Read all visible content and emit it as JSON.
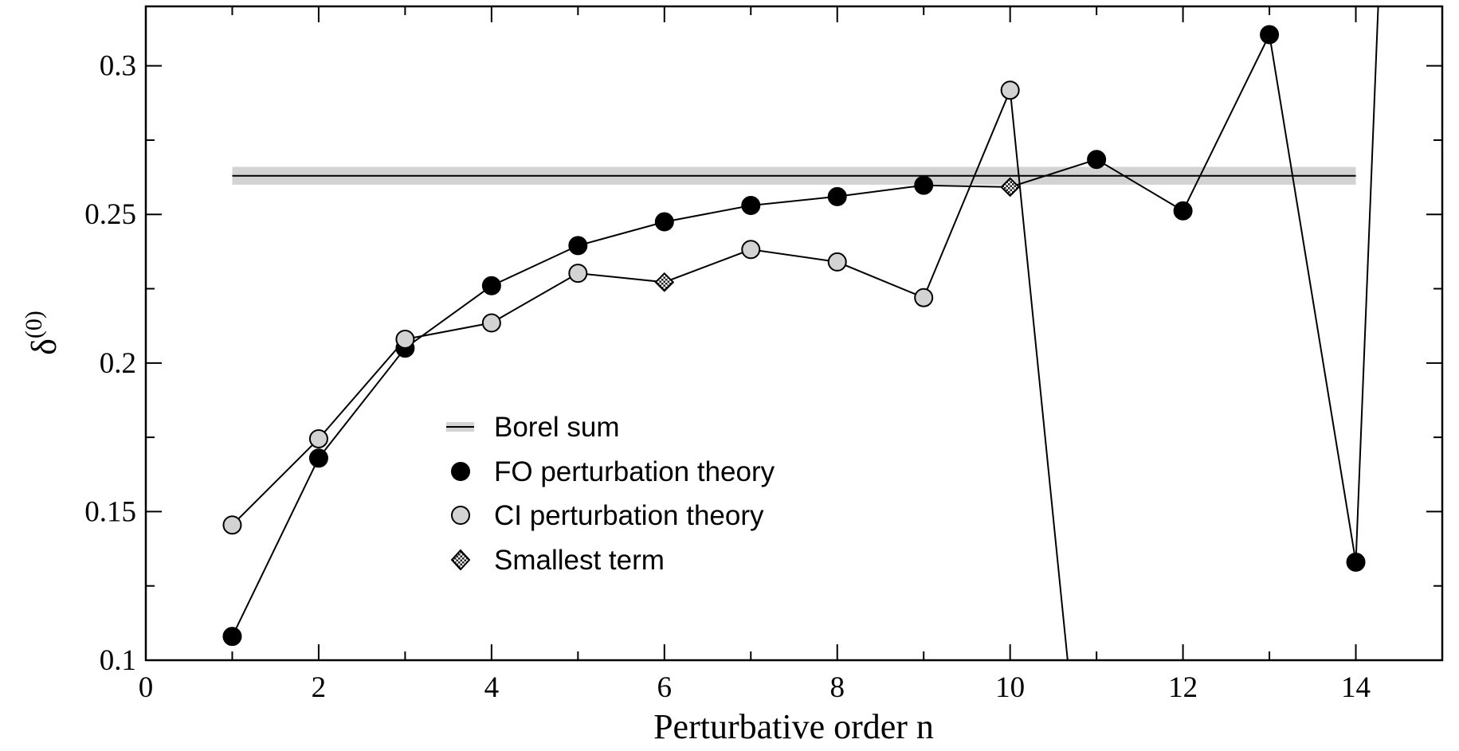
{
  "chart_data": {
    "type": "line",
    "xlabel": "Perturbative order n",
    "ylabel_base": "δ",
    "ylabel_sup": "(0)",
    "xlim": [
      0,
      15
    ],
    "ylim": [
      0.1,
      0.32
    ],
    "x_ticks": [
      0,
      2,
      4,
      6,
      8,
      10,
      12,
      14
    ],
    "x_tick_labels": [
      "0",
      "2",
      "4",
      "6",
      "8",
      "10",
      "12",
      "14"
    ],
    "y_ticks": [
      0.1,
      0.15,
      0.2,
      0.25,
      0.3
    ],
    "y_tick_labels": [
      "0.1",
      "0.15",
      "0.2",
      "0.25",
      "0.3"
    ],
    "grid": false,
    "legend_position": "center-left",
    "borel_sum": {
      "name": "Borel sum",
      "y": 0.263,
      "band": [
        0.26,
        0.266
      ],
      "x_range": [
        1,
        14
      ]
    },
    "series": [
      {
        "name": "FO perturbation theory",
        "marker": "filled-circle",
        "color": "#000000",
        "x": [
          1,
          2,
          3,
          4,
          5,
          6,
          7,
          8,
          9,
          10,
          11,
          12,
          13,
          14,
          14.3
        ],
        "values": [
          0.108,
          0.168,
          0.205,
          0.226,
          0.2395,
          0.2475,
          0.253,
          0.256,
          0.2598,
          0.2592,
          0.2685,
          0.2512,
          0.3105,
          0.133,
          0.35
        ],
        "marker_x": [
          1,
          2,
          3,
          4,
          5,
          6,
          7,
          8,
          9,
          11,
          12,
          13,
          14
        ]
      },
      {
        "name": "CI perturbation theory",
        "marker": "light-circle",
        "color": "#d3d3d3",
        "x": [
          1,
          2,
          3,
          4,
          5,
          6,
          7,
          8,
          9,
          10,
          10.7
        ],
        "values": [
          0.1455,
          0.1745,
          0.208,
          0.2135,
          0.2302,
          0.2272,
          0.2382,
          0.234,
          0.222,
          0.2918,
          0.09
        ],
        "marker_x": [
          1,
          2,
          3,
          4,
          5,
          7,
          8,
          9,
          10
        ]
      }
    ],
    "smallest_term": {
      "name": "Smallest term",
      "marker": "hatched-diamond",
      "points": [
        {
          "x": 6,
          "y": 0.2272
        },
        {
          "x": 10,
          "y": 0.2592
        }
      ]
    }
  }
}
